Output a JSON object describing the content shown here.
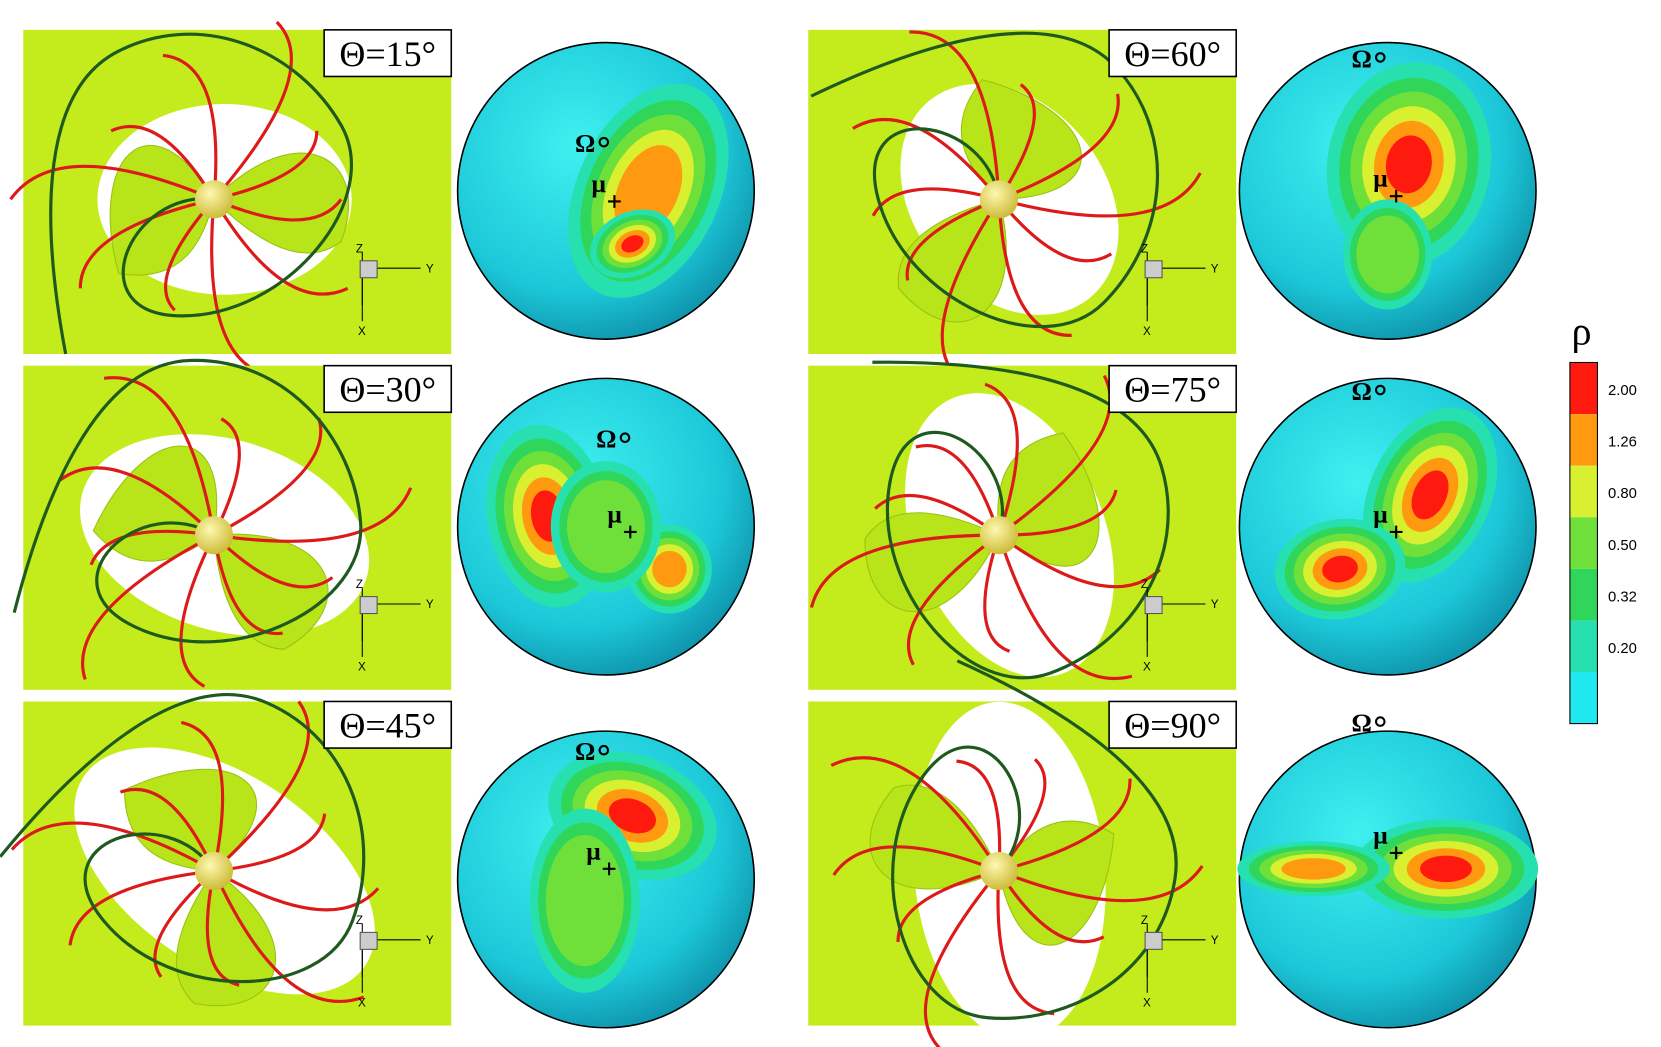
{
  "panels": [
    {
      "theta": "Θ=15°",
      "omega": "Ω",
      "mu": "μ",
      "axes": [
        "Z",
        "Y",
        "X"
      ]
    },
    {
      "theta": "Θ=30°",
      "omega": "Ω",
      "mu": "μ",
      "axes": [
        "Z",
        "Y",
        "X"
      ]
    },
    {
      "theta": "Θ=45°",
      "omega": "Ω",
      "mu": "μ",
      "axes": [
        "Z",
        "Y",
        "X"
      ]
    },
    {
      "theta": "Θ=60°",
      "omega": "Ω",
      "mu": "μ",
      "axes": [
        "Z",
        "Y",
        "X"
      ]
    },
    {
      "theta": "Θ=75°",
      "omega": "Ω",
      "mu": "μ",
      "axes": [
        "Z",
        "Y",
        "X"
      ]
    },
    {
      "theta": "Θ=90°",
      "omega": "Ω",
      "mu": "μ",
      "axes": [
        "Z",
        "Y",
        "X"
      ]
    }
  ],
  "colorbar": {
    "title": "ρ",
    "ticks": [
      "2.00",
      "1.26",
      "0.80",
      "0.50",
      "0.32",
      "0.20"
    ]
  }
}
